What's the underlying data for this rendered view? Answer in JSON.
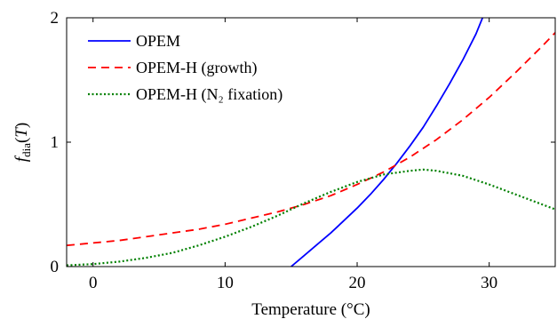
{
  "chart_data": {
    "type": "line",
    "xlabel": "Temperature (°C)",
    "ylabel": "f_dia(T)",
    "xlim": [
      -2,
      35
    ],
    "ylim": [
      0,
      2
    ],
    "xticks": [
      0,
      10,
      20,
      30
    ],
    "yticks": [
      0,
      1,
      2
    ],
    "grid": false,
    "legend_position": "top-left",
    "series": [
      {
        "name": "OPEM",
        "color": "#0000ff",
        "style": "solid",
        "x": [
          15,
          16,
          17,
          18,
          19,
          20,
          21,
          22,
          23,
          24,
          25,
          26,
          27,
          28,
          29,
          29.5
        ],
        "y": [
          0,
          0.09,
          0.18,
          0.27,
          0.37,
          0.47,
          0.58,
          0.7,
          0.83,
          0.97,
          1.12,
          1.29,
          1.47,
          1.66,
          1.87,
          2.0
        ]
      },
      {
        "name": "OPEM-H (growth)",
        "color": "#ff0000",
        "style": "dashed",
        "x": [
          -2,
          0,
          2,
          4,
          6,
          8,
          10,
          12,
          14,
          16,
          18,
          20,
          22,
          24,
          26,
          28,
          30,
          32,
          34,
          35
        ],
        "y": [
          0.17,
          0.19,
          0.21,
          0.24,
          0.27,
          0.3,
          0.34,
          0.39,
          0.44,
          0.5,
          0.57,
          0.66,
          0.76,
          0.88,
          1.02,
          1.18,
          1.36,
          1.56,
          1.77,
          1.88
        ]
      },
      {
        "name": "OPEM-H (N₂ fixation)",
        "color": "#008000",
        "style": "dotted",
        "x": [
          -2,
          0,
          2,
          4,
          6,
          8,
          10,
          12,
          14,
          16,
          18,
          20,
          22,
          24,
          25,
          26,
          28,
          30,
          32,
          34,
          35
        ],
        "y": [
          0.01,
          0.02,
          0.04,
          0.07,
          0.11,
          0.17,
          0.24,
          0.32,
          0.41,
          0.51,
          0.6,
          0.68,
          0.74,
          0.77,
          0.78,
          0.77,
          0.73,
          0.66,
          0.58,
          0.5,
          0.46
        ]
      }
    ]
  }
}
